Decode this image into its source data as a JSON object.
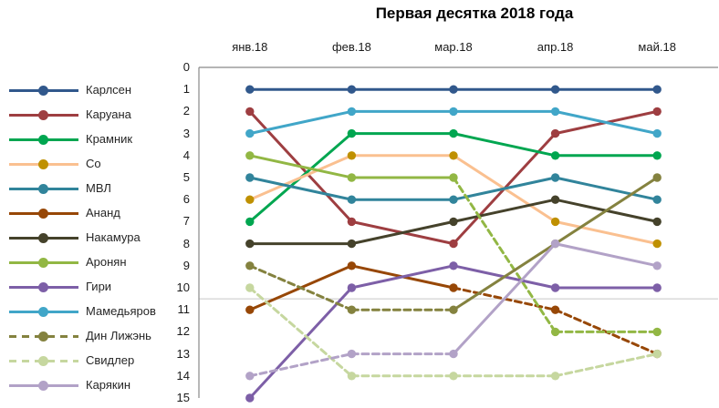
{
  "chart_data": {
    "type": "line",
    "title": "Первая десятка 2018 года",
    "categories": [
      "янв.18",
      "фев.18",
      "мар.18",
      "апр.18",
      "май.18"
    ],
    "x_axis": {
      "label_side": "top"
    },
    "y_axis": {
      "min": 0,
      "max": 15,
      "tick_step": 1,
      "reversed": true,
      "label_side": "left"
    },
    "top_n": 10,
    "threshold_gridline_at": 10.5,
    "legend_position": "left",
    "dash_rule": "segment is dashed when its destination rank is outside the top 10 (value >= 11)",
    "series": [
      {
        "name": "Карлсен",
        "color": "#31588C",
        "legend_dashed": false,
        "values": [
          1,
          1,
          1,
          1,
          1
        ]
      },
      {
        "name": "Каруана",
        "color": "#9E3E41",
        "legend_dashed": false,
        "values": [
          2,
          7,
          8,
          3,
          2
        ]
      },
      {
        "name": "Крамник",
        "color": "#00A650",
        "legend_dashed": false,
        "values": [
          7,
          3,
          3,
          4,
          4
        ]
      },
      {
        "name": "Со",
        "color": "#FAC090",
        "marker_color": "#BF9000",
        "legend_dashed": false,
        "values": [
          6,
          4,
          4,
          7,
          8
        ]
      },
      {
        "name": "МВЛ",
        "color": "#31849B",
        "legend_dashed": false,
        "values": [
          5,
          6,
          6,
          5,
          6
        ]
      },
      {
        "name": "Ананд",
        "color": "#974706",
        "legend_dashed": false,
        "values": [
          11,
          9,
          10,
          11,
          13
        ]
      },
      {
        "name": "Накамура",
        "color": "#45422B",
        "legend_dashed": false,
        "values": [
          8,
          8,
          7,
          6,
          7
        ]
      },
      {
        "name": "Аронян",
        "color": "#92B744",
        "legend_dashed": false,
        "values": [
          4,
          5,
          5,
          12,
          12
        ]
      },
      {
        "name": "Гири",
        "color": "#7D5FA7",
        "legend_dashed": false,
        "values": [
          15,
          10,
          9,
          10,
          10
        ]
      },
      {
        "name": "Мамедьяров",
        "color": "#41A6C8",
        "legend_dashed": false,
        "values": [
          3,
          2,
          2,
          2,
          3
        ]
      },
      {
        "name": "Дин Лижэнь",
        "color": "#84823F",
        "legend_dashed": true,
        "values": [
          9,
          11,
          11,
          8,
          5
        ]
      },
      {
        "name": "Свидлер",
        "color": "#C6D79F",
        "legend_dashed": true,
        "values": [
          10,
          14,
          14,
          14,
          13
        ]
      },
      {
        "name": "Карякин",
        "color": "#B2A2C7",
        "legend_dashed": false,
        "values": [
          14,
          13,
          13,
          8,
          9
        ]
      }
    ],
    "style": {
      "axis_line_color": "#898989",
      "threshold_line_color": "#C8C8C8",
      "background": "#FFFFFF"
    }
  }
}
